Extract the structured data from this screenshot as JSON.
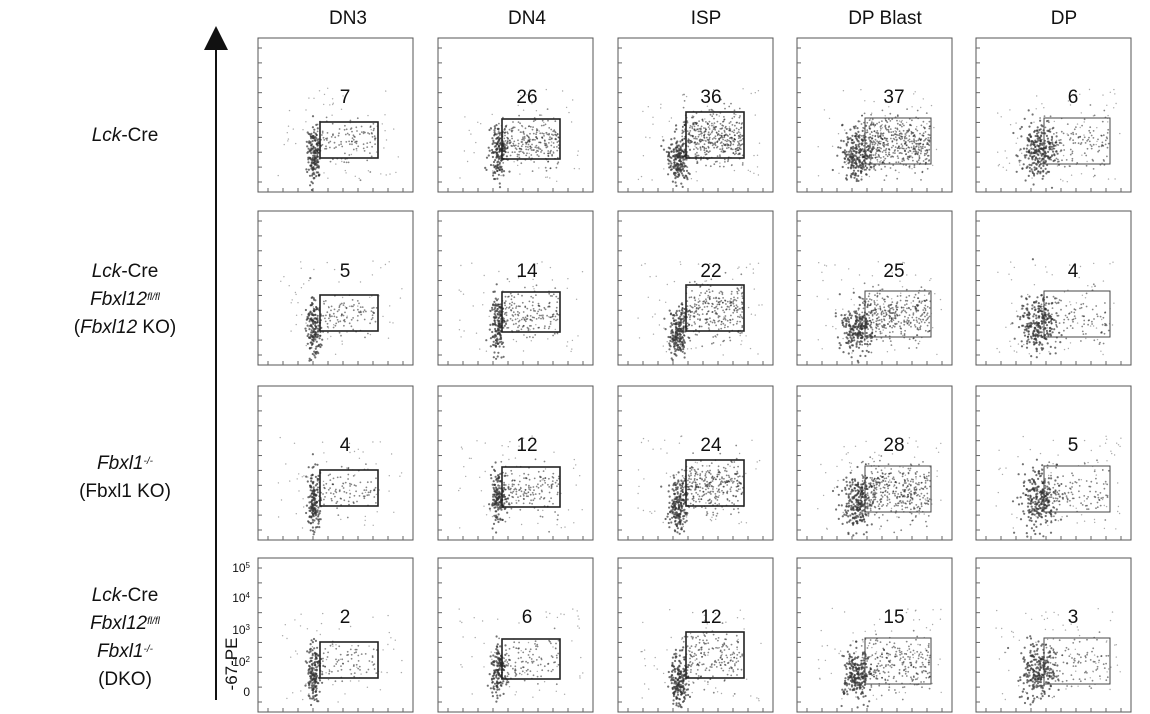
{
  "chart_data": {
    "type": "scatter",
    "subtype": "flow-cytometry-panel-grid",
    "columns": [
      "DN3",
      "DN4",
      "ISP",
      "DP Blast",
      "DP"
    ],
    "rows": [
      {
        "lines": [
          {
            "parts": [
              {
                "text": "Lck",
                "italic": true
              },
              {
                "text": "-Cre",
                "italic": false
              }
            ]
          }
        ]
      },
      {
        "lines": [
          {
            "parts": [
              {
                "text": "Lck",
                "italic": true
              },
              {
                "text": "-Cre",
                "italic": false
              }
            ]
          },
          {
            "parts": [
              {
                "text": "Fbxl12",
                "italic": true
              },
              {
                "text": "fl/fl",
                "italic": true,
                "sup": true
              }
            ]
          },
          {
            "parts": [
              {
                "text": "(",
                "italic": false
              },
              {
                "text": "Fbxl12",
                "italic": true
              },
              {
                "text": " KO)",
                "italic": false
              }
            ]
          }
        ]
      },
      {
        "lines": [
          {
            "parts": [
              {
                "text": "Fbxl1",
                "italic": true
              },
              {
                "text": "-/-",
                "italic": true,
                "sup": true
              }
            ]
          },
          {
            "parts": [
              {
                "text": "(Fbxl1 KO)",
                "italic": false
              }
            ]
          }
        ]
      },
      {
        "lines": [
          {
            "parts": [
              {
                "text": "Lck",
                "italic": true
              },
              {
                "text": "-Cre",
                "italic": false
              }
            ]
          },
          {
            "parts": [
              {
                "text": "Fbxl12",
                "italic": true
              },
              {
                "text": "fl/fl",
                "italic": true,
                "sup": true
              }
            ]
          },
          {
            "parts": [
              {
                "text": "Fbxl1",
                "italic": true
              },
              {
                "text": "-/-",
                "italic": true,
                "sup": true
              }
            ]
          },
          {
            "parts": [
              {
                "text": "(DKO)",
                "italic": false
              }
            ]
          }
        ]
      }
    ],
    "gate_percentages": [
      [
        7,
        26,
        36,
        37,
        6
      ],
      [
        5,
        14,
        22,
        25,
        4
      ],
      [
        4,
        12,
        24,
        28,
        5
      ],
      [
        2,
        6,
        12,
        15,
        3
      ]
    ],
    "ylabel": "-67-PE",
    "ytick_labels": [
      {
        "base": "10",
        "exp": "5"
      },
      {
        "base": "10",
        "exp": "4"
      },
      {
        "base": "10",
        "exp": "3"
      },
      {
        "base": "10",
        "exp": "2"
      },
      {
        "base": "0",
        "exp": ""
      }
    ],
    "y_scale": "biexponential",
    "grid": false,
    "legend": "none"
  }
}
